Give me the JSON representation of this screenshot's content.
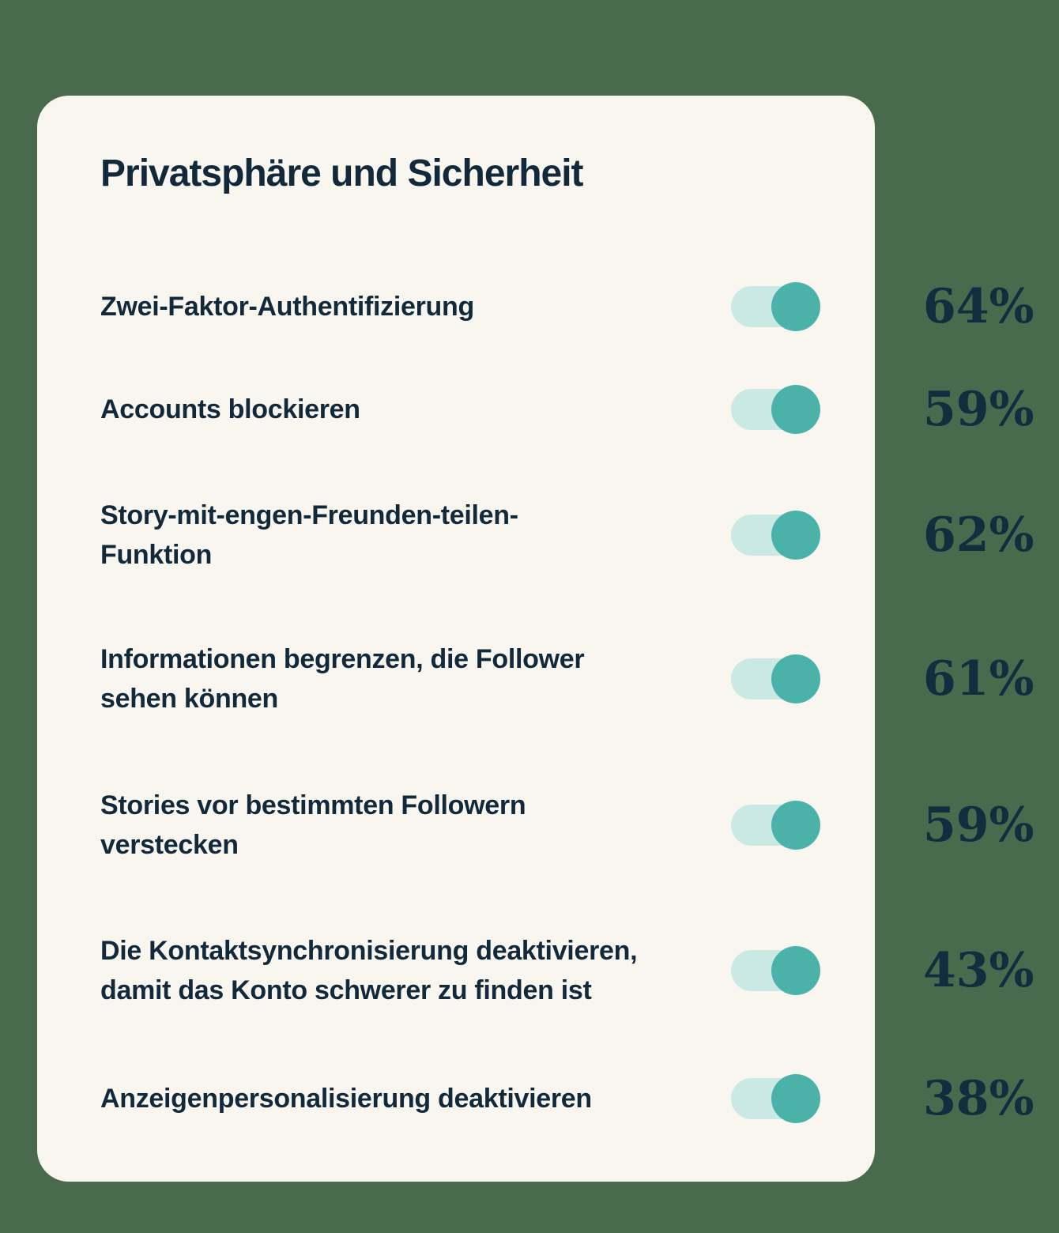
{
  "page": {
    "background_color": "#4A6A4D"
  },
  "card": {
    "background_color": "#F8F6EF",
    "title": "Privatsphäre und Sicherheit"
  },
  "colors": {
    "text_navy": "#12293B",
    "toggle_track": "#CBE9E4",
    "toggle_knob": "#4BB2A9",
    "percent_text": "#132C3E"
  },
  "settings": [
    {
      "lines": [
        "Zwei-Faktor-Authentifizierung",
        ""
      ],
      "toggle_state": "on",
      "percentage": "64%"
    },
    {
      "lines": [
        "Accounts blockieren",
        ""
      ],
      "toggle_state": "on",
      "percentage": "59%"
    },
    {
      "lines": [
        "Story-mit-engen-Freunden-teilen-",
        "Funktion"
      ],
      "toggle_state": "on",
      "percentage": "62%"
    },
    {
      "lines": [
        "Informationen begrenzen, die Follower",
        "sehen können"
      ],
      "toggle_state": "on",
      "percentage": "61%"
    },
    {
      "lines": [
        "Stories vor bestimmten Followern",
        "verstecken"
      ],
      "toggle_state": "on",
      "percentage": "59%"
    },
    {
      "lines": [
        "Die Kontaktsynchronisierung deaktivieren,",
        "damit das Konto schwerer zu finden ist"
      ],
      "toggle_state": "on",
      "percentage": "43%"
    },
    {
      "lines": [
        "Anzeigenpersonalisierung deaktivieren",
        ""
      ],
      "toggle_state": "on",
      "percentage": "38%"
    }
  ],
  "chart_data": {
    "type": "table",
    "title": "Privatsphäre und Sicherheit",
    "categories": [
      "Zwei-Faktor-Authentifizierung",
      "Accounts blockieren",
      "Story-mit-engen-Freunden-teilen-Funktion",
      "Informationen begrenzen, die Follower sehen können",
      "Stories vor bestimmten Followern verstecken",
      "Die Kontaktsynchronisierung deaktivieren, damit das Konto schwerer zu finden ist",
      "Anzeigenpersonalisierung deaktivieren"
    ],
    "values": [
      64,
      59,
      62,
      61,
      59,
      43,
      38
    ],
    "unit": "%",
    "legend_position": "none",
    "grid": false
  }
}
